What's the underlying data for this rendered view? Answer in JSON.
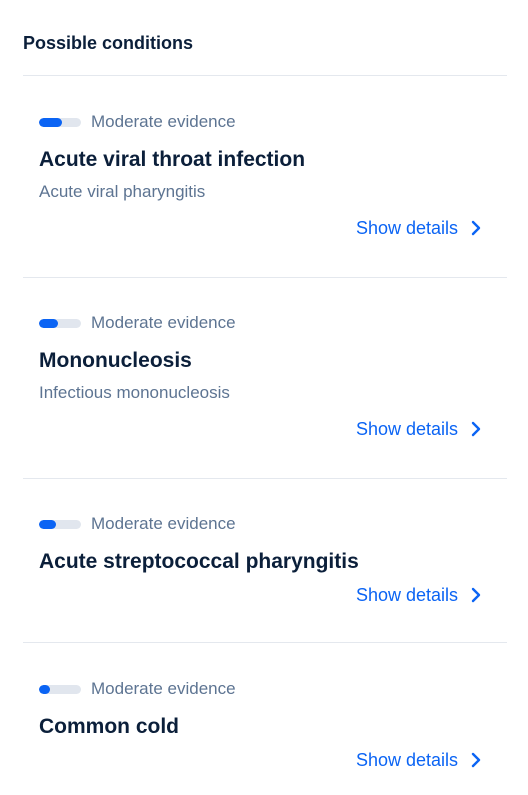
{
  "page": {
    "title": "Possible conditions"
  },
  "colors": {
    "accent": "#0b64f4",
    "bar_track": "#e1e6ee",
    "muted_text": "#5d7492",
    "heading_text": "#0b1f3a",
    "divider": "#e4e8ee"
  },
  "conditions": [
    {
      "evidence_label": "Moderate evidence",
      "evidence_level": 0.55,
      "name": "Acute viral throat infection",
      "subtitle": "Acute viral pharyngitis",
      "details_label": "Show details",
      "details_icon": "chevron-right-icon"
    },
    {
      "evidence_label": "Moderate evidence",
      "evidence_level": 0.45,
      "name": "Mononucleosis",
      "subtitle": "Infectious mononucleosis",
      "details_label": "Show details",
      "details_icon": "chevron-right-icon"
    },
    {
      "evidence_label": "Moderate evidence",
      "evidence_level": 0.4,
      "name": "Acute streptococcal pharyngitis",
      "subtitle": "",
      "details_label": "Show details",
      "details_icon": "chevron-right-icon"
    },
    {
      "evidence_label": "Moderate evidence",
      "evidence_level": 0.25,
      "name": "Common cold",
      "subtitle": "",
      "details_label": "Show details",
      "details_icon": "chevron-right-icon"
    }
  ]
}
